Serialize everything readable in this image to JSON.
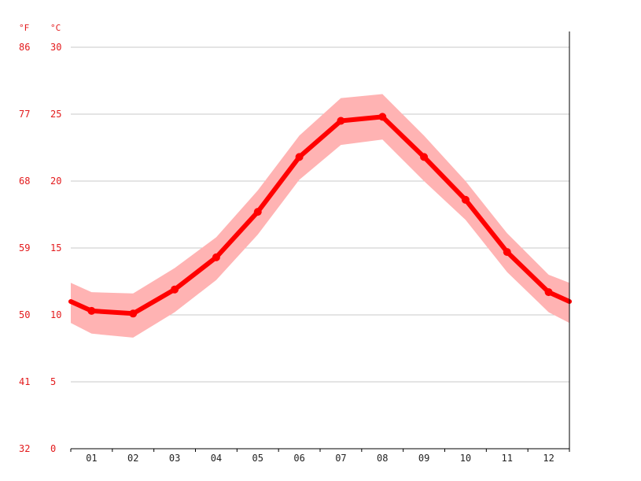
{
  "chart_data": {
    "type": "line",
    "units": {
      "fahrenheit": "°F",
      "celsius": "°C"
    },
    "categories": [
      "01",
      "02",
      "03",
      "04",
      "05",
      "06",
      "07",
      "08",
      "09",
      "10",
      "11",
      "12"
    ],
    "series": [
      {
        "values": [
          10.3,
          10.1,
          11.9,
          14.3,
          17.7,
          21.8,
          24.5,
          24.8,
          21.8,
          18.6,
          14.7,
          11.7
        ]
      }
    ],
    "band": {
      "min": [
        8.6,
        8.3,
        10.2,
        12.6,
        16.0,
        20.1,
        22.7,
        23.1,
        20.0,
        17.1,
        13.2,
        10.2
      ],
      "max": [
        11.7,
        11.6,
        13.5,
        15.8,
        19.3,
        23.4,
        26.2,
        26.5,
        23.4,
        20.0,
        16.1,
        13.0
      ]
    },
    "edge_values": {
      "start": 11.0,
      "end": 11.0,
      "start_min": 9.4,
      "start_max": 12.4,
      "end_min": 9.4,
      "end_max": 12.4
    },
    "ylim": [
      0,
      30
    ],
    "y_ticks_celsius": [
      "0",
      "5",
      "10",
      "15",
      "20",
      "25",
      "30"
    ],
    "y_ticks_fahrenheit": [
      "32",
      "41",
      "50",
      "59",
      "68",
      "77",
      "86"
    ],
    "grid": true,
    "colors": {
      "line": "#ff0000",
      "band": "#ffb3b3",
      "grid": "#c8c8c8",
      "axis_labels": "#e31a1c",
      "x_labels": "#222222"
    }
  }
}
